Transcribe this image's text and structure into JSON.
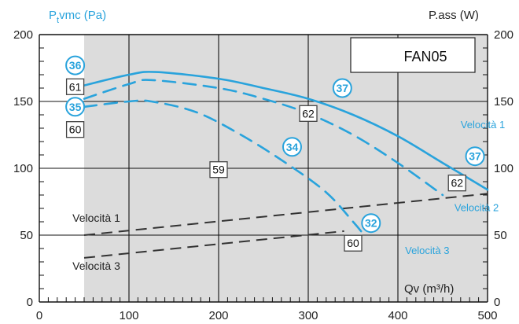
{
  "chart_data": {
    "type": "line",
    "x_axis": {
      "label": "Qv (m³/h)",
      "min": 0,
      "max": 500,
      "ticks": [
        0,
        100,
        200,
        300,
        400,
        500
      ]
    },
    "y_left": {
      "label": "Ptvmc (Pa)",
      "min": 0,
      "max": 200,
      "ticks": [
        0,
        50,
        100,
        150,
        200
      ]
    },
    "y_right": {
      "label": "P.ass (W)",
      "min": 0,
      "max": 200,
      "ticks": [
        0,
        50,
        100,
        150,
        200
      ]
    },
    "legend_box": "FAN05",
    "grid": true,
    "shaded_region_x": [
      50,
      500
    ],
    "colors": {
      "pressure": "#29a3dc",
      "power": "#333333",
      "shade": "#dcdcdc",
      "grid": "#111111"
    },
    "pressure_series": [
      {
        "name": "Velocità 1",
        "style": "solid",
        "points": [
          [
            50,
            162
          ],
          [
            100,
            170
          ],
          [
            130,
            172
          ],
          [
            200,
            167
          ],
          [
            250,
            160
          ],
          [
            300,
            152
          ],
          [
            350,
            140
          ],
          [
            400,
            124
          ],
          [
            450,
            104
          ],
          [
            500,
            84
          ]
        ]
      },
      {
        "name": "Velocità 2",
        "style": "dashed",
        "points": [
          [
            50,
            152
          ],
          [
            100,
            163
          ],
          [
            125,
            166
          ],
          [
            200,
            160
          ],
          [
            250,
            152
          ],
          [
            300,
            141
          ],
          [
            350,
            125
          ],
          [
            400,
            104
          ],
          [
            450,
            80
          ]
        ]
      },
      {
        "name": "Velocità 3",
        "style": "dashed",
        "points": [
          [
            50,
            146
          ],
          [
            100,
            150
          ],
          [
            125,
            150
          ],
          [
            175,
            142
          ],
          [
            225,
            125
          ],
          [
            275,
            104
          ],
          [
            320,
            82
          ],
          [
            350,
            60
          ],
          [
            360,
            52
          ]
        ]
      }
    ],
    "power_series": [
      {
        "name": "Velocità 1",
        "style": "dashed",
        "points": [
          [
            50,
            50
          ],
          [
            500,
            81
          ]
        ]
      },
      {
        "name": "Velocità 3",
        "style": "dashed",
        "points": [
          [
            50,
            33
          ],
          [
            340,
            53
          ]
        ]
      }
    ],
    "series_labels": [
      {
        "text": "Velocità 1",
        "color": "pressure",
        "x": 470,
        "y": 130
      },
      {
        "text": "Velocità 2",
        "color": "pressure",
        "x": 463,
        "y": 68
      },
      {
        "text": "Velocità 3",
        "color": "pressure",
        "x": 408,
        "y": 36
      },
      {
        "text": "Velocità 1",
        "color": "dark",
        "x": 37,
        "y": 60
      },
      {
        "text": "Velocità 3",
        "color": "dark",
        "x": 37,
        "y": 24
      }
    ],
    "circle_markers": [
      {
        "text": "36",
        "x": 40,
        "y": 177
      },
      {
        "text": "35",
        "x": 40,
        "y": 146
      },
      {
        "text": "37",
        "x": 338,
        "y": 160
      },
      {
        "text": "34",
        "x": 282,
        "y": 116
      },
      {
        "text": "37",
        "x": 486,
        "y": 109
      },
      {
        "text": "32",
        "x": 370,
        "y": 59
      }
    ],
    "square_markers": [
      {
        "text": "61",
        "x": 40,
        "y": 161
      },
      {
        "text": "60",
        "x": 40,
        "y": 129
      },
      {
        "text": "62",
        "x": 300,
        "y": 141
      },
      {
        "text": "59",
        "x": 200,
        "y": 99
      },
      {
        "text": "62",
        "x": 466,
        "y": 89
      },
      {
        "text": "60",
        "x": 350,
        "y": 44
      }
    ]
  }
}
